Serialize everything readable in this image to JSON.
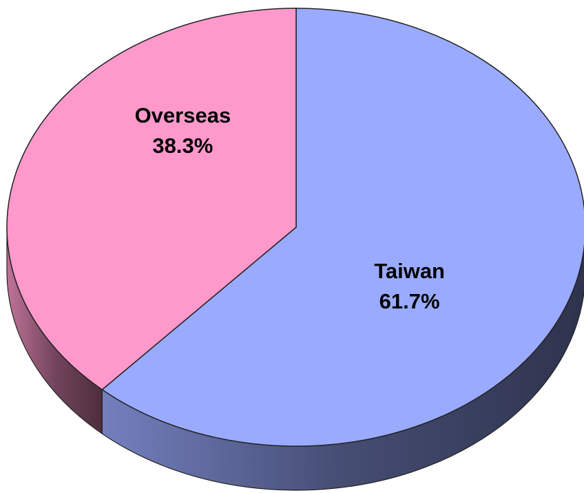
{
  "chart_data": {
    "type": "pie",
    "categories": [
      "Taiwan",
      "Overseas"
    ],
    "values": [
      61.7,
      38.3
    ],
    "value_labels": [
      "61.7%",
      "38.3%"
    ],
    "colors": [
      "#9aabff",
      "#ff99cc"
    ]
  }
}
